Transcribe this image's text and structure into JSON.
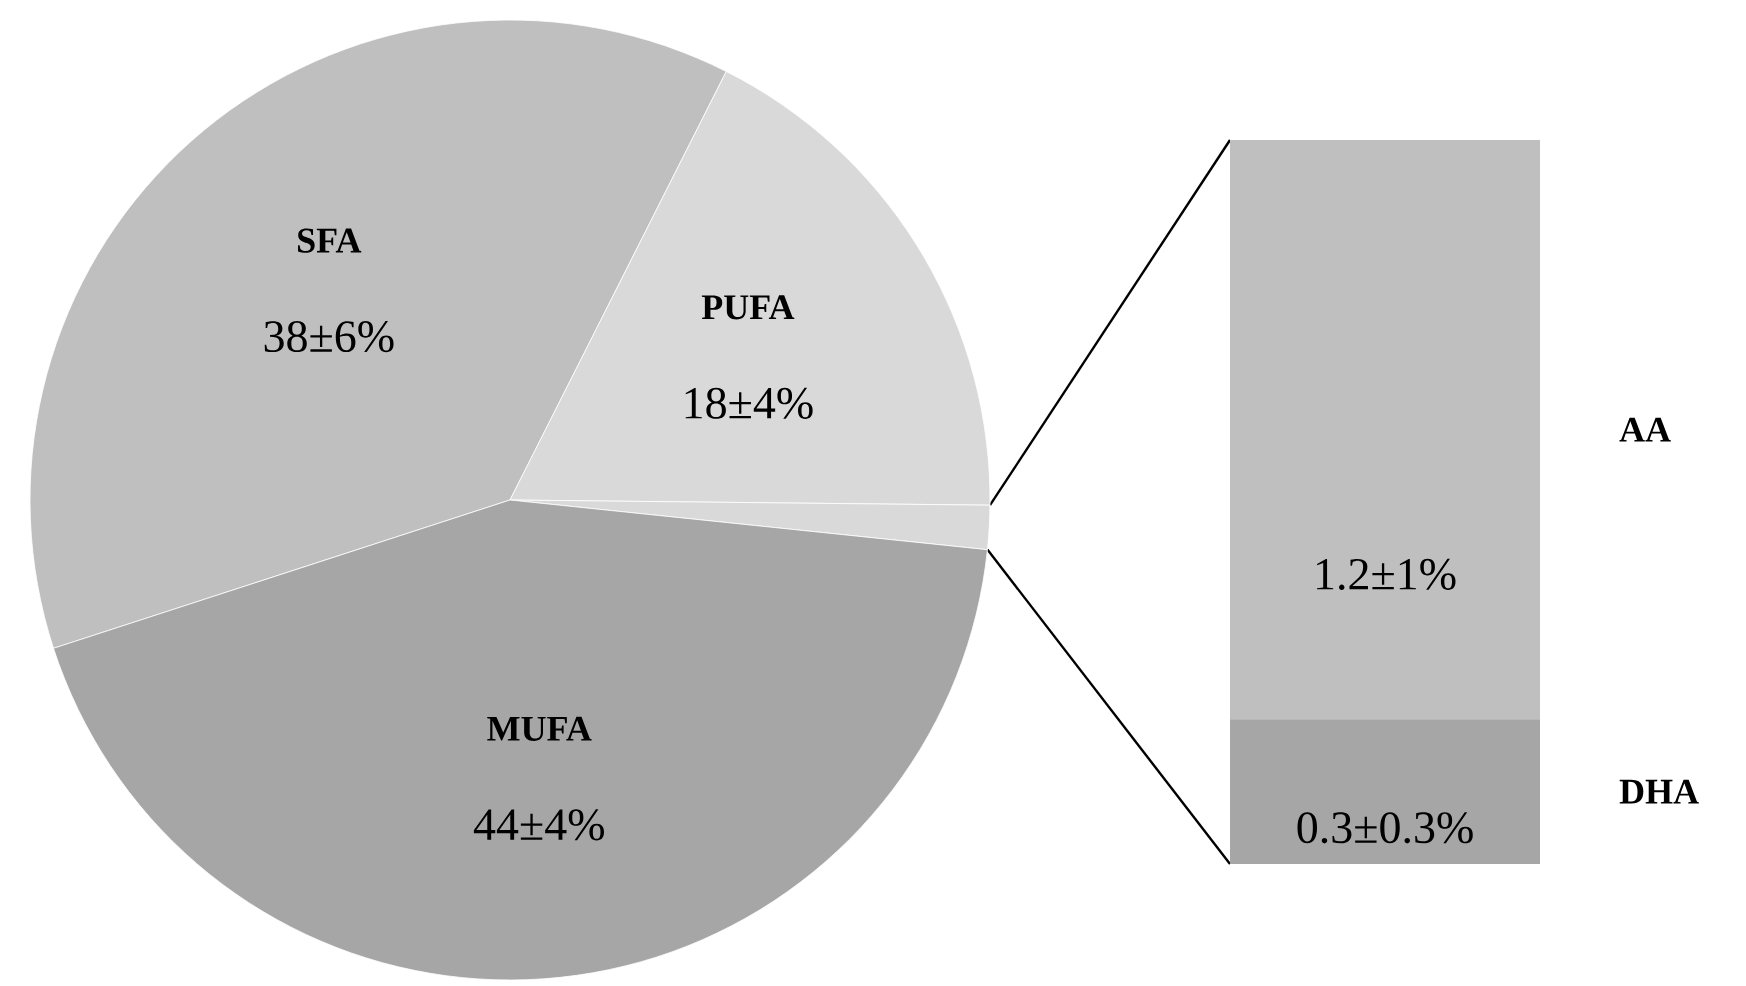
{
  "chart_data": [
    {
      "type": "pie",
      "categories": [
        "SFA",
        "PUFA",
        null,
        "MUFA"
      ],
      "values": [
        38,
        18,
        1.5,
        44
      ],
      "value_labels": [
        "38±6%",
        "18±4%",
        null,
        "44±4%"
      ],
      "colors": [
        "#bfbfbf",
        "#d9d9d9",
        "#d9d9d9",
        "#a6a6a6"
      ]
    },
    {
      "type": "bar",
      "stacked": true,
      "categories": [
        null
      ],
      "series": [
        {
          "name": "DHA",
          "color": "#a6a6a6",
          "values": [
            0.3
          ],
          "value_labels": [
            "0.3±0.3%"
          ]
        },
        {
          "name": "AA",
          "color": "#bfbfbf",
          "values": [
            1.2
          ],
          "value_labels": [
            "1.2±1%"
          ]
        }
      ]
    }
  ]
}
